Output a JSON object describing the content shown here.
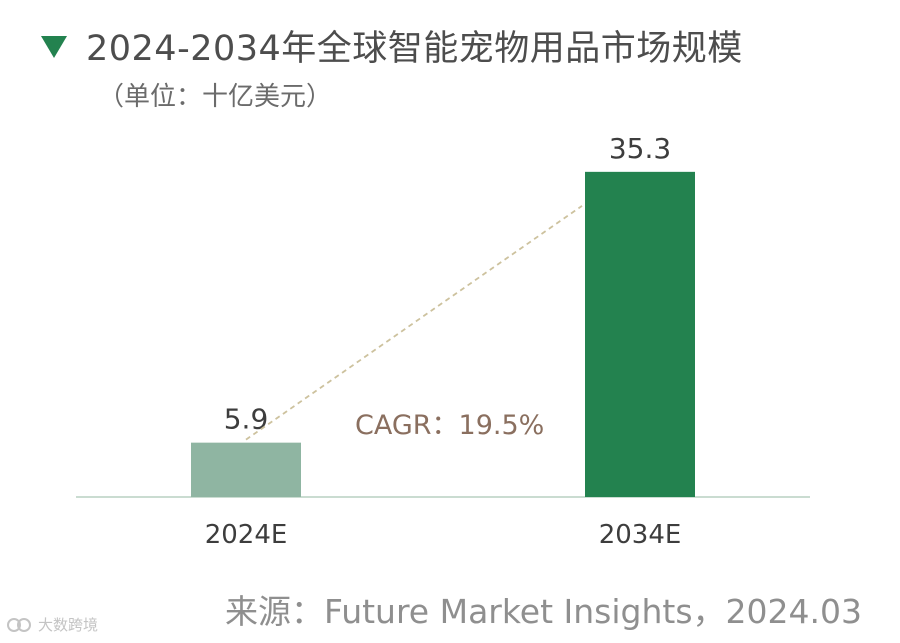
{
  "header": {
    "title": "2024-2034年全球智能宠物用品市场规模",
    "subtitle": "（单位：十亿美元）",
    "marker_icon": "triangle-down-icon"
  },
  "chart_data": {
    "type": "bar",
    "categories": [
      "2024E",
      "2034E"
    ],
    "values": [
      5.9,
      35.3
    ],
    "value_labels": [
      "5.9",
      "35.3"
    ],
    "title": "2024-2034年全球智能宠物用品市场规模",
    "subtitle": "（单位：十亿美元）",
    "ylim": [
      0,
      39.3
    ],
    "grid": false,
    "annotation": "CAGR：19.5%",
    "colors": [
      "#8fb5a2",
      "#23824f"
    ],
    "trend_line_color": "#cdc29e",
    "annotation_color": "#8a6f5f",
    "axis_color": "#b8d1c2"
  },
  "footer": {
    "source": "来源：Future Market Insights，2024.03",
    "watermark": "大数跨境"
  },
  "colors": {
    "marker": "#23824f",
    "title_text": "#4d4d4d",
    "source_text": "#8f8f8f"
  }
}
